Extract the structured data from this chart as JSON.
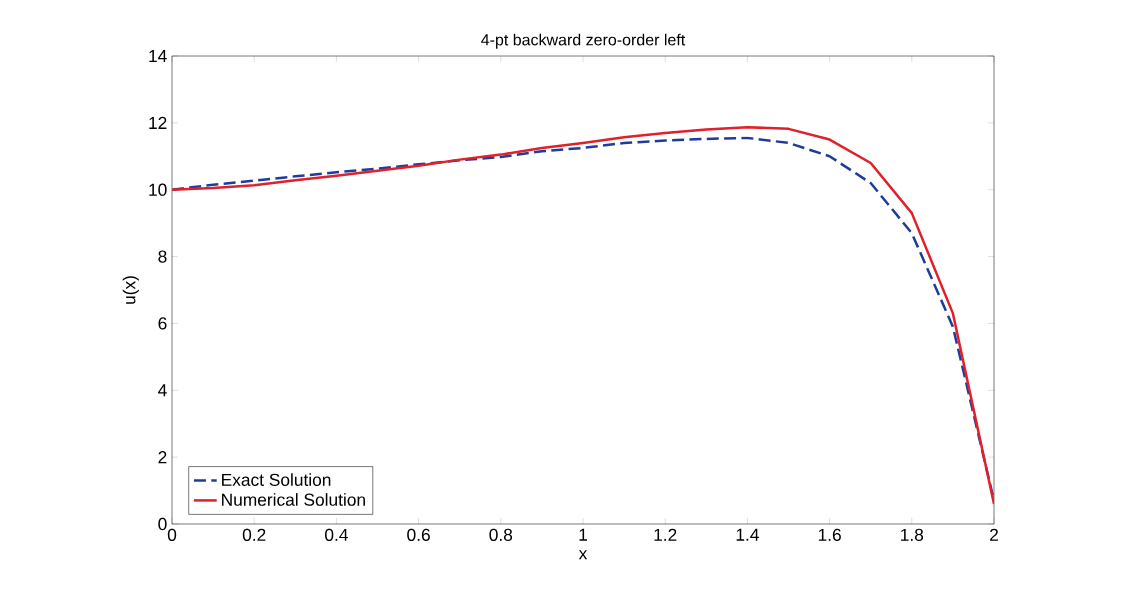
{
  "chart_data": {
    "type": "line",
    "title": "4-pt backward zero-order left",
    "xlabel": "x",
    "ylabel": "u(x)",
    "x": [
      0,
      0.1,
      0.2,
      0.3,
      0.4,
      0.5,
      0.6,
      0.7,
      0.8,
      0.9,
      1.0,
      1.1,
      1.2,
      1.3,
      1.4,
      1.5,
      1.6,
      1.7,
      1.8,
      1.9,
      2.0
    ],
    "series": [
      {
        "name": "Exact Solution",
        "color": "#1f3c9c",
        "line_style": "dashed",
        "values": [
          10.0,
          10.15,
          10.27,
          10.4,
          10.52,
          10.63,
          10.76,
          10.88,
          10.98,
          11.15,
          11.25,
          11.4,
          11.47,
          11.52,
          11.55,
          11.4,
          11.0,
          10.2,
          8.7,
          5.9,
          0.7
        ]
      },
      {
        "name": "Numerical Solution",
        "color": "#e0202a",
        "line_style": "solid",
        "values": [
          10.0,
          10.05,
          10.13,
          10.28,
          10.42,
          10.57,
          10.72,
          10.9,
          11.05,
          11.25,
          11.4,
          11.57,
          11.7,
          11.8,
          11.87,
          11.82,
          11.5,
          10.8,
          9.3,
          6.3,
          0.6
        ]
      }
    ],
    "xlim": [
      0,
      2
    ],
    "ylim": [
      0,
      14
    ],
    "xticks": [
      0,
      0.2,
      0.4,
      0.6,
      0.8,
      1,
      1.2,
      1.4,
      1.6,
      1.8,
      2
    ],
    "yticks": [
      0,
      2,
      4,
      6,
      8,
      10,
      12,
      14
    ],
    "legend": "bottom left",
    "grid": false,
    "marker": "none"
  }
}
